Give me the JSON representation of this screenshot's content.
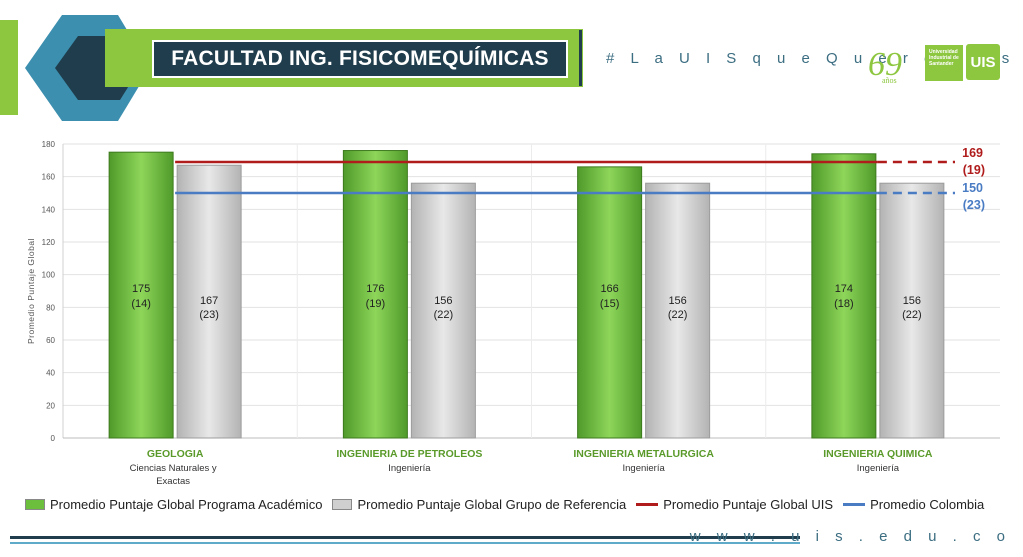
{
  "header": {
    "title": "FACULTAD ING. FISICOMEQUÍMICAS",
    "hashtag": "# L a U I S q u e Q u e r e m o s",
    "logo_69": "69",
    "logo_69_sub": "años",
    "logo_uis_text": "Universidad Industrial de Santander",
    "logo_uis_mark": "UIS"
  },
  "footer": {
    "url": "w w w . u i s . e d u . c o"
  },
  "colors": {
    "program_bar": "#6cbf3d",
    "reference_bar": "#cfcfcf",
    "uis_line": "#b01c1c",
    "colombia_line": "#4a7cc4",
    "title_bg": "#1f3d4c",
    "accent_green": "#8dc63f"
  },
  "chart_data": {
    "type": "bar",
    "ylabel": "Promedio Puntaje Global",
    "ylim": [
      0,
      180
    ],
    "yticks": [
      0,
      20,
      40,
      60,
      80,
      100,
      120,
      140,
      160,
      180
    ],
    "categories": [
      {
        "name": "GEOLOGIA",
        "sub": "Ciencias Naturales y Exactas"
      },
      {
        "name": "INGENIERIA DE PETROLEOS",
        "sub": "Ingeniería"
      },
      {
        "name": "INGENIERIA METALURGICA",
        "sub": "Ingeniería"
      },
      {
        "name": "INGENIERIA QUIMICA",
        "sub": "Ingeniería"
      }
    ],
    "series": [
      {
        "name": "Promedio Puntaje Global Programa Académico",
        "values": [
          175,
          176,
          166,
          174
        ],
        "labels": [
          "(14)",
          "(19)",
          "(15)",
          "(18)"
        ]
      },
      {
        "name": "Promedio Puntaje Global Grupo de Referencia",
        "values": [
          167,
          156,
          156,
          156
        ],
        "labels": [
          "(23)",
          "(22)",
          "(22)",
          "(22)"
        ]
      }
    ],
    "reference_lines": [
      {
        "name": "Promedio Puntaje Global UIS",
        "value": 169,
        "value_text": "169",
        "count_text": "(19)"
      },
      {
        "name": "Promedio Colombia",
        "value": 150,
        "value_text": "150",
        "count_text": "(23)"
      }
    ]
  }
}
